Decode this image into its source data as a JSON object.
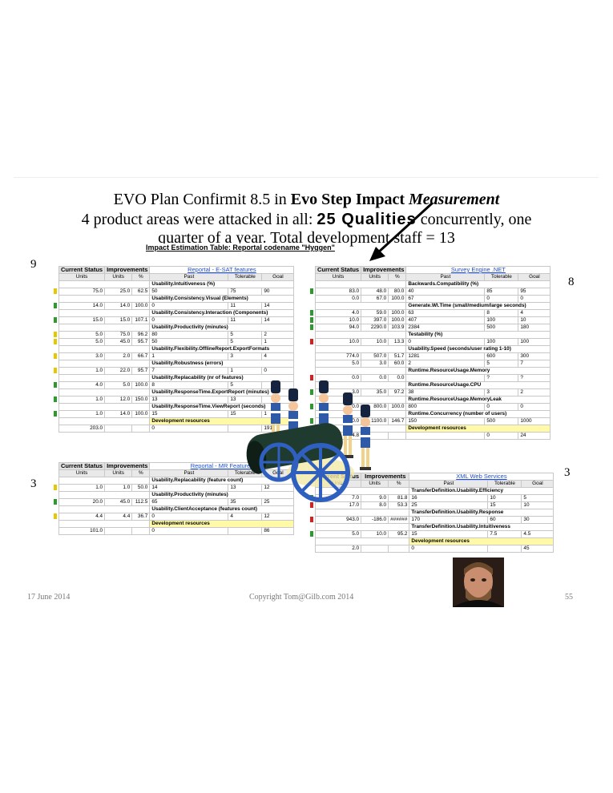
{
  "title": {
    "line1_a": "EVO Plan Confirmit 8.5 in ",
    "line1_b": "Evo Step Impact ",
    "line1_c": "Measurement",
    "line2_a": "4 product areas were attacked in all: ",
    "line2_b": "25 Qualities",
    "line2_c": " concurrently, one",
    "line3": "quarter of a year. Total development staff = 13"
  },
  "table_title": "Impact Estimation Table: Reportal codename \"Hyggen\"",
  "side_numbers": {
    "top_left": "9",
    "top_right": "8",
    "bottom_left": "3",
    "bottom_right": "3"
  },
  "footer": {
    "date": "17 June 2014",
    "copyright": "Copyright Tom@Gilb.com 2014",
    "page": "55"
  },
  "headers": {
    "current": "Current Status",
    "improvements": "Improvements",
    "units": "Units",
    "pct": "%",
    "past": "Past",
    "tolerable": "Tolerable",
    "goal": "Goal"
  },
  "tables": [
    {
      "name": "Reportal - E-SAT features",
      "rows": [
        {
          "q": "Usability.Intuitiveness (%)"
        },
        {
          "c": "75.0",
          "u": "25.0",
          "p": "62.5",
          "past": "50",
          "tol": "75",
          "goal": "90",
          "mark": "#e6c800"
        },
        {
          "q": "Usability.Consistency.Visual (Elements)"
        },
        {
          "c": "14.0",
          "u": "14.0",
          "p": "100.0",
          "past": "0",
          "tol": "11",
          "goal": "14",
          "mark": "#2d9a2d"
        },
        {
          "q": "Usability.Consistency.Interaction (Components)"
        },
        {
          "c": "15.0",
          "u": "15.0",
          "p": "107.1",
          "past": "0",
          "tol": "11",
          "goal": "14",
          "mark": "#2d9a2d"
        },
        {
          "q": "Usability.Productivity (minutes)"
        },
        {
          "c": "5.0",
          "u": "75.0",
          "p": "96.2",
          "past": "80",
          "tol": "5",
          "goal": "2",
          "mark": "#e6c800"
        },
        {
          "c": "5.0",
          "u": "45.0",
          "p": "95.7",
          "past": "50",
          "tol": "5",
          "goal": "1",
          "mark": "#e6c800"
        },
        {
          "q": "Usability.Flexibility.OfflineReport.ExportFormats"
        },
        {
          "c": "3.0",
          "u": "2.0",
          "p": "66.7",
          "past": "1",
          "tol": "3",
          "goal": "4",
          "mark": "#e6c800"
        },
        {
          "q": "Usability.Robustness (errors)"
        },
        {
          "c": "1.0",
          "u": "22.0",
          "p": "95.7",
          "past": "7",
          "tol": "1",
          "goal": "0",
          "mark": "#e6c800"
        },
        {
          "q": "Usability.Replacability (nr of features)"
        },
        {
          "c": "4.0",
          "u": "5.0",
          "p": "100.0",
          "past": "8",
          "tol": "5",
          "goal": "",
          "mark": "#2d9a2d"
        },
        {
          "q": "Usability.ResponseTime.ExportReport (minutes)"
        },
        {
          "c": "1.0",
          "u": "12.0",
          "p": "150.0",
          "past": "13",
          "tol": "13",
          "goal": "",
          "mark": "#2d9a2d"
        },
        {
          "q": "Usability.ResponseTime.ViewReport (seconds)"
        },
        {
          "c": "1.0",
          "u": "14.0",
          "p": "100.0",
          "past": "15",
          "tol": "15",
          "goal": "1",
          "mark": "#2d9a2d"
        },
        {
          "dev": "Development resources"
        },
        {
          "c": "203.0",
          "u": "",
          "p": "",
          "past": "0",
          "tol": "",
          "goal": "191",
          "mark": ""
        }
      ]
    },
    {
      "name": "Survey Engine .NET",
      "rows": [
        {
          "q": "Backwards.Compatibility (%)"
        },
        {
          "c": "83.0",
          "u": "48.0",
          "p": "80.0",
          "past": "40",
          "tol": "85",
          "goal": "95",
          "mark": "#2d9a2d"
        },
        {
          "c": "0.0",
          "u": "67.0",
          "p": "100.0",
          "past": "67",
          "tol": "0",
          "goal": "0",
          "mark": ""
        },
        {
          "q": "Generate.WI.Time (small/medium/large seconds)"
        },
        {
          "c": "4.0",
          "u": "59.0",
          "p": "100.0",
          "past": "63",
          "tol": "8",
          "goal": "4",
          "mark": "#2d9a2d"
        },
        {
          "c": "10.0",
          "u": "397.0",
          "p": "100.0",
          "past": "407",
          "tol": "100",
          "goal": "10",
          "mark": "#2d9a2d"
        },
        {
          "c": "94.0",
          "u": "2290.0",
          "p": "103.9",
          "past": "2384",
          "tol": "500",
          "goal": "180",
          "mark": "#2d9a2d"
        },
        {
          "q": "Testability (%)"
        },
        {
          "c": "10.0",
          "u": "10.0",
          "p": "13.3",
          "past": "0",
          "tol": "100",
          "goal": "100",
          "mark": "#d62020"
        },
        {
          "q": "Usability.Speed (seconds/user rating 1-10)"
        },
        {
          "c": "774.0",
          "u": "507.0",
          "p": "51.7",
          "past": "1281",
          "tol": "600",
          "goal": "300",
          "mark": ""
        },
        {
          "c": "5.0",
          "u": "3.0",
          "p": "60.0",
          "past": "2",
          "tol": "5",
          "goal": "7",
          "mark": ""
        },
        {
          "q": "Runtime.ResourceUsage.Memory"
        },
        {
          "c": "0.0",
          "u": "0.0",
          "p": "0.0",
          "past": "",
          "tol": "?",
          "goal": "?",
          "mark": "#d62020"
        },
        {
          "q": "Runtime.ResourceUsage.CPU"
        },
        {
          "c": "3.0",
          "u": "35.0",
          "p": "97.2",
          "past": "38",
          "tol": "3",
          "goal": "2",
          "mark": "#2d9a2d"
        },
        {
          "q": "Runtime.ResourceUsage.MemoryLeak"
        },
        {
          "c": "0.0",
          "u": "800.0",
          "p": "100.0",
          "past": "800",
          "tol": "0",
          "goal": "0",
          "mark": "#2d9a2d"
        },
        {
          "q": "Runtime.Concurrency (number of users)"
        },
        {
          "c": "1350.0",
          "u": "1100.0",
          "p": "146.7",
          "past": "150",
          "tol": "500",
          "goal": "1000",
          "mark": "#2d9a2d"
        },
        {
          "dev": "Development resources"
        },
        {
          "c": "64.8",
          "u": "",
          "p": "",
          "past": "",
          "tol": "0",
          "goal": "24",
          "mark": ""
        }
      ]
    },
    {
      "name": "Reportal - MR Features",
      "rows": [
        {
          "q": "Usability.Replacability (feature count)"
        },
        {
          "c": "1.0",
          "u": "1.0",
          "p": "50.0",
          "past": "14",
          "tol": "13",
          "goal": "12",
          "mark": "#e6c800"
        },
        {
          "q": "Usability.Productivity (minutes)"
        },
        {
          "c": "20.0",
          "u": "45.0",
          "p": "112.5",
          "past": "65",
          "tol": "35",
          "goal": "25",
          "mark": "#2d9a2d"
        },
        {
          "q": "Usability.ClientAcceptance (features count)"
        },
        {
          "c": "4.4",
          "u": "4.4",
          "p": "36.7",
          "past": "0",
          "tol": "4",
          "goal": "12",
          "mark": "#e6c800"
        },
        {
          "dev": "Development resources"
        },
        {
          "c": "101.0",
          "u": "",
          "p": "",
          "past": "0",
          "tol": "",
          "goal": "86",
          "mark": ""
        }
      ]
    },
    {
      "name": "XML Web Services",
      "rows": [
        {
          "q": "TransferDefinition.Usability.Efficiency"
        },
        {
          "c": "7.0",
          "u": "9.0",
          "p": "81.8",
          "past": "16",
          "tol": "10",
          "goal": "5",
          "mark": "#2d9a2d"
        },
        {
          "c": "17.0",
          "u": "8.0",
          "p": "53.3",
          "past": "25",
          "tol": "15",
          "goal": "10",
          "mark": "#d62020"
        },
        {
          "q": "TransferDefinition.Usability.Response"
        },
        {
          "c": "943.0",
          "u": "-186.0",
          "p": "######",
          "past": "170",
          "tol": "60",
          "goal": "30",
          "mark": "#d62020"
        },
        {
          "q": "TransferDefinition.Usability.Intuitiveness"
        },
        {
          "c": "5.0",
          "u": "10.0",
          "p": "95.2",
          "past": "15",
          "tol": "7.5",
          "goal": "4.5",
          "mark": "#2d9a2d"
        },
        {
          "dev": "Development resources"
        },
        {
          "c": "2.0",
          "u": "",
          "p": "",
          "past": "0",
          "tol": "",
          "goal": "45",
          "mark": ""
        }
      ]
    }
  ]
}
